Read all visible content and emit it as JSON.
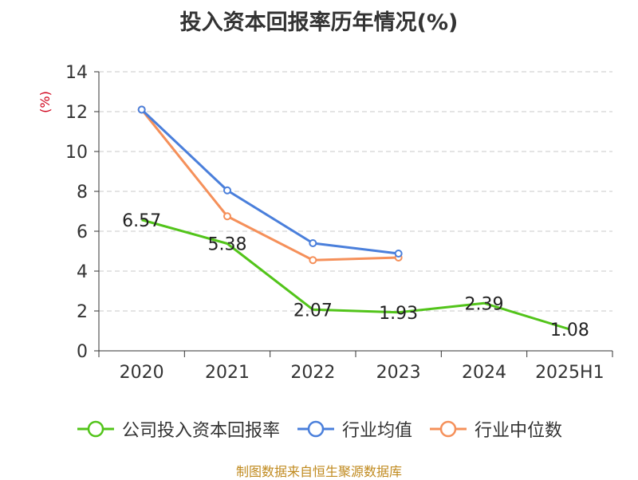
{
  "chart_data": {
    "type": "line",
    "title": "投入资本回报率历年情况(%)",
    "ylabel": "(%)",
    "xlabel": "",
    "categories": [
      "2020",
      "2021",
      "2022",
      "2023",
      "2024",
      "2025H1"
    ],
    "ylim": [
      0,
      14
    ],
    "yticks": [
      0,
      2,
      4,
      6,
      8,
      10,
      12,
      14
    ],
    "grid": true,
    "legend_position": "bottom",
    "series": [
      {
        "name": "公司投入资本回报率",
        "color": "#52c41a",
        "values": [
          6.57,
          5.38,
          2.07,
          1.93,
          2.39,
          1.08
        ],
        "labels": [
          "6.57",
          "5.38",
          "2.07",
          "1.93",
          "2.39",
          "1.08"
        ]
      },
      {
        "name": "行业均值",
        "color": "#4a7fdb",
        "values": [
          12.1,
          8.05,
          5.4,
          4.88,
          null,
          null
        ]
      },
      {
        "name": "行业中位数",
        "color": "#f5905a",
        "values": [
          12.1,
          6.75,
          4.55,
          4.68,
          null,
          null
        ]
      }
    ]
  },
  "footer": {
    "source": "制图数据来自恒生聚源数据库"
  }
}
